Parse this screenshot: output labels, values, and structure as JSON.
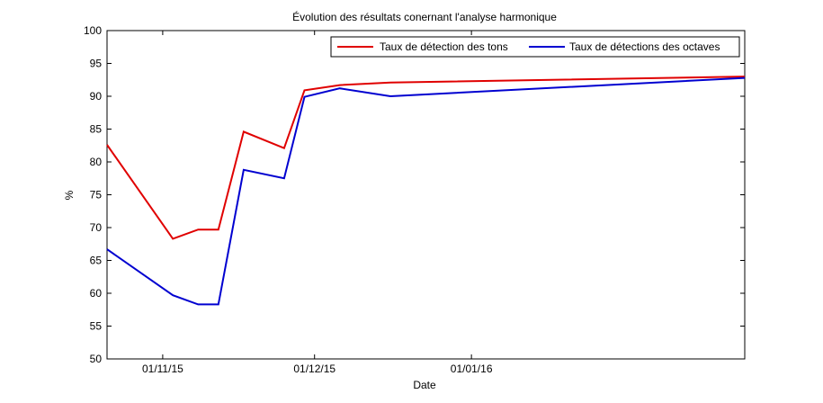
{
  "chart_data": {
    "type": "line",
    "title": "Évolution des résultats conernant l'analyse harmonique",
    "xlabel": "Date",
    "ylabel": "%",
    "ylim": [
      50,
      100
    ],
    "yticks": [
      50,
      55,
      60,
      65,
      70,
      75,
      80,
      85,
      90,
      95,
      100
    ],
    "xlim": [
      "2015-10-21",
      "2016-02-24"
    ],
    "xticks": [
      {
        "date": "2015-11-01",
        "label": "01/11/15"
      },
      {
        "date": "2015-12-01",
        "label": "01/12/15"
      },
      {
        "date": "2016-01-01",
        "label": "01/01/16"
      }
    ],
    "grid": false,
    "legend_position": "top-right",
    "series": [
      {
        "name": "Taux de détection des tons",
        "color": "#e00000",
        "points": [
          {
            "x": "2015-10-21",
            "y": 82.6
          },
          {
            "x": "2015-11-03",
            "y": 68.3
          },
          {
            "x": "2015-11-08",
            "y": 69.7
          },
          {
            "x": "2015-11-12",
            "y": 69.7
          },
          {
            "x": "2015-11-17",
            "y": 84.6
          },
          {
            "x": "2015-11-25",
            "y": 82.1
          },
          {
            "x": "2015-11-29",
            "y": 90.9
          },
          {
            "x": "2015-12-06",
            "y": 91.7
          },
          {
            "x": "2015-12-16",
            "y": 92.1
          },
          {
            "x": "2016-02-24",
            "y": 93.0
          }
        ]
      },
      {
        "name": "Taux de détections des octaves",
        "color": "#0000d0",
        "points": [
          {
            "x": "2015-10-21",
            "y": 66.7
          },
          {
            "x": "2015-11-03",
            "y": 59.7
          },
          {
            "x": "2015-11-08",
            "y": 58.3
          },
          {
            "x": "2015-11-12",
            "y": 58.3
          },
          {
            "x": "2015-11-17",
            "y": 78.8
          },
          {
            "x": "2015-11-25",
            "y": 77.5
          },
          {
            "x": "2015-11-29",
            "y": 89.9
          },
          {
            "x": "2015-12-06",
            "y": 91.2
          },
          {
            "x": "2015-12-16",
            "y": 90.0
          },
          {
            "x": "2016-02-24",
            "y": 92.8
          }
        ]
      }
    ]
  }
}
